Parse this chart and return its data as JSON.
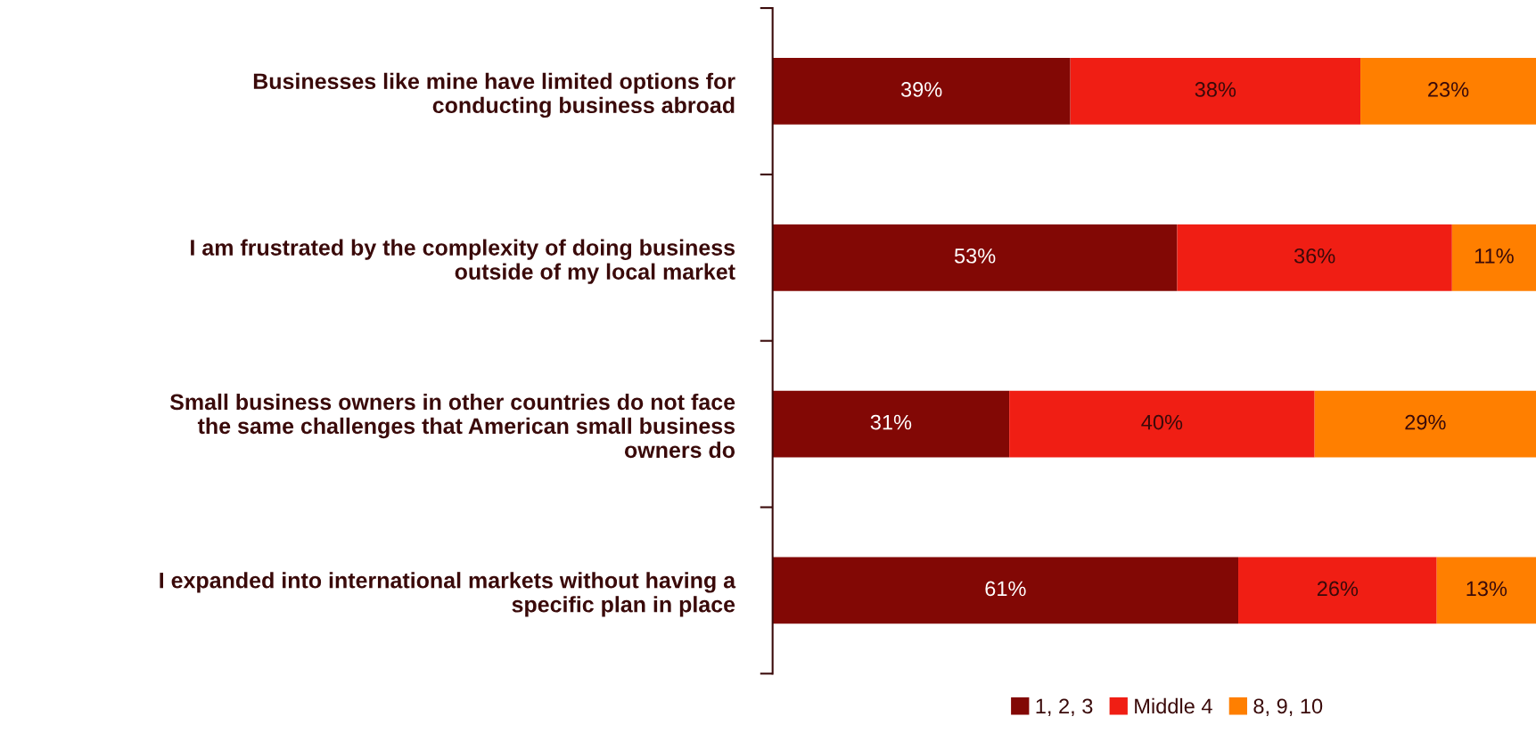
{
  "chart_data": {
    "type": "bar",
    "orientation": "horizontal",
    "stacked": true,
    "legend": "bottom",
    "grid": false,
    "categories": [
      "Businesses like mine have limited options for\nconducting business abroad",
      "I am frustrated by the complexity of doing business\noutside of my local market",
      "Small business owners in other countries do not face\nthe same challenges that American small business\nowners do",
      "I expanded into international markets without having a\nspecific plan in place"
    ],
    "series": [
      {
        "name": "1, 2, 3",
        "color": "#820805",
        "values": [
          39,
          53,
          31,
          61
        ],
        "value_labels": [
          "39%",
          "53%",
          "31%",
          "61%"
        ]
      },
      {
        "name": "Middle 4",
        "color": "#f01e14",
        "values": [
          38,
          36,
          40,
          26
        ],
        "value_labels": [
          "38%",
          "36%",
          "40%",
          "26%"
        ]
      },
      {
        "name": "8, 9, 10",
        "color": "#ff7f00",
        "values": [
          23,
          11,
          29,
          13
        ],
        "value_labels": [
          "23%",
          "11%",
          "29%",
          "13%"
        ]
      }
    ]
  }
}
